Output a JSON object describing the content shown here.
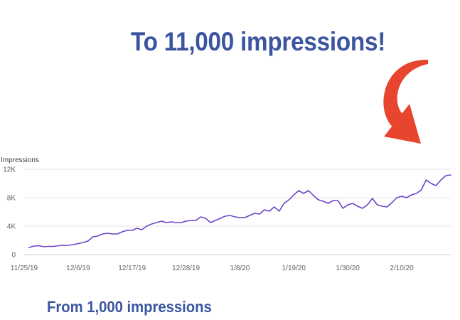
{
  "headline": "To 11,000 impressions!",
  "footer": "From 1,000 impressions",
  "colors": {
    "headline": "#3b55a0",
    "line": "#6b44c9",
    "arrow": "#e8452e",
    "grid": "#e6e6e6"
  },
  "chart_data": {
    "type": "line",
    "title": "",
    "xlabel": "",
    "ylabel": "Impressions",
    "ylim": [
      0,
      12000
    ],
    "yticks": [
      0,
      4000,
      8000,
      12000
    ],
    "ytick_labels": [
      "0",
      "4K",
      "8K",
      "12K"
    ],
    "xtick_labels": [
      "11/25/19",
      "12/6/19",
      "12/17/19",
      "12/28/19",
      "1/8/20",
      "1/19/20",
      "1/30/20",
      "2/10/20"
    ],
    "xtick_days": [
      0,
      11,
      22,
      33,
      44,
      55,
      66,
      77
    ],
    "grid": true,
    "series": [
      {
        "name": "",
        "x": [
          1,
          2,
          3,
          4,
          5,
          6,
          7,
          8,
          9,
          10,
          11,
          12,
          13,
          14,
          15,
          16,
          17,
          18,
          19,
          20,
          21,
          22,
          23,
          24,
          25,
          26,
          27,
          28,
          29,
          30,
          31,
          32,
          33,
          34,
          35,
          36,
          37,
          38,
          39,
          40,
          41,
          42,
          43,
          44,
          45,
          46,
          47,
          48,
          49,
          50,
          51,
          52,
          53,
          54,
          55,
          56,
          57,
          58,
          59,
          60,
          61,
          62,
          63,
          64,
          65,
          66,
          67,
          68,
          69,
          70,
          71,
          72,
          73,
          74,
          75,
          76,
          77,
          78,
          79,
          80,
          81,
          82,
          83,
          84,
          85,
          86,
          87
        ],
        "values": [
          1000,
          1200,
          1250,
          1100,
          1150,
          1150,
          1250,
          1300,
          1300,
          1400,
          1550,
          1700,
          1900,
          2500,
          2600,
          2900,
          3000,
          2900,
          2900,
          3200,
          3400,
          3400,
          3700,
          3500,
          4000,
          4300,
          4500,
          4700,
          4500,
          4600,
          4500,
          4500,
          4700,
          4800,
          4800,
          5300,
          5100,
          4500,
          4800,
          5100,
          5400,
          5500,
          5300,
          5200,
          5200,
          5500,
          5800,
          5700,
          6300,
          6100,
          6700,
          6100,
          7200,
          7700,
          8400,
          9000,
          8600,
          9000,
          8300,
          7700,
          7500,
          7200,
          7600,
          7600,
          6500,
          7000,
          7200,
          6800,
          6500,
          7000,
          7900,
          7000,
          6800,
          6700,
          7300,
          8000,
          8200,
          8000,
          8400,
          8600,
          9100,
          10500,
          10000,
          9700,
          10500,
          11100,
          11200
        ]
      }
    ]
  }
}
